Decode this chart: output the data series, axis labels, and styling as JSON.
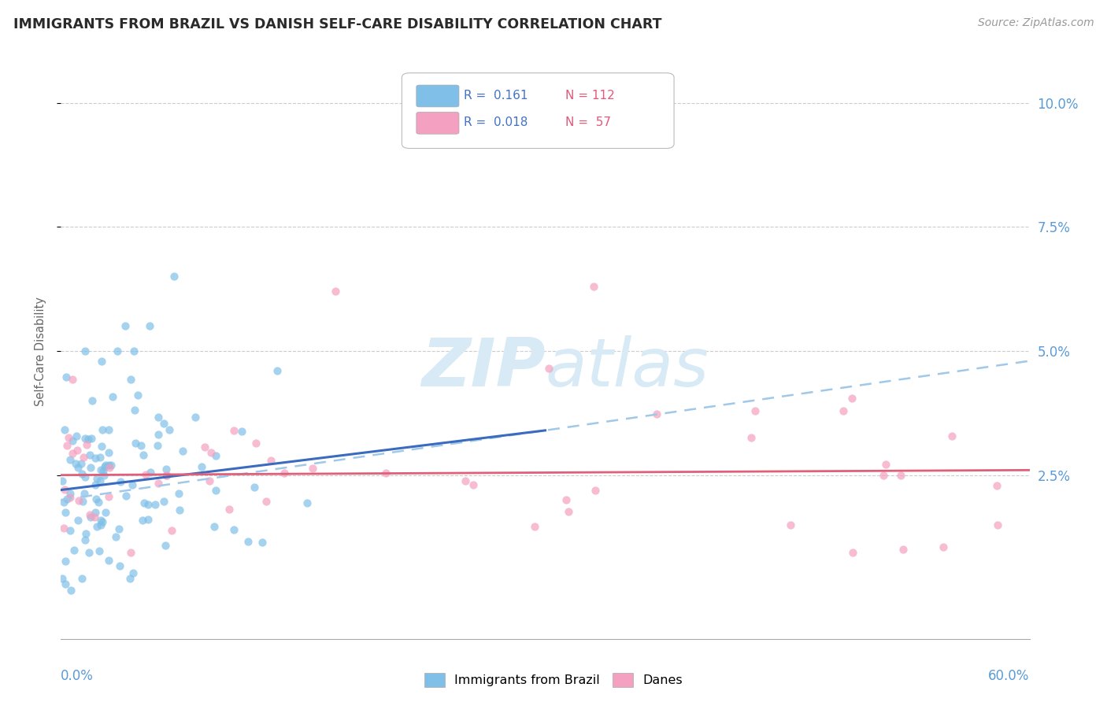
{
  "title": "IMMIGRANTS FROM BRAZIL VS DANISH SELF-CARE DISABILITY CORRELATION CHART",
  "source": "Source: ZipAtlas.com",
  "ylabel": "Self-Care Disability",
  "xlim": [
    0.0,
    0.6
  ],
  "ylim": [
    -0.008,
    0.108
  ],
  "color_blue": "#7fbfe8",
  "color_pink": "#f4a0c0",
  "color_trendline_blue": "#3a6bbf",
  "color_trendline_pink": "#e0607a",
  "color_trendline_dashed": "#a0c8e8",
  "axis_label_color": "#5b9bd5",
  "watermark_color": "#d8eaf5",
  "legend_r1": "R =  0.161",
  "legend_n1": "N = 112",
  "legend_r2": "R =  0.018",
  "legend_n2": "N =  57",
  "blue_trend_x0": 0.0,
  "blue_trend_y0": 0.022,
  "blue_trend_x1": 0.3,
  "blue_trend_y1": 0.034,
  "dashed_trend_x0": 0.0,
  "dashed_trend_y0": 0.02,
  "dashed_trend_x1": 0.6,
  "dashed_trend_y1": 0.048,
  "pink_trend_x0": 0.0,
  "pink_trend_y0": 0.025,
  "pink_trend_x1": 0.6,
  "pink_trend_y1": 0.026
}
